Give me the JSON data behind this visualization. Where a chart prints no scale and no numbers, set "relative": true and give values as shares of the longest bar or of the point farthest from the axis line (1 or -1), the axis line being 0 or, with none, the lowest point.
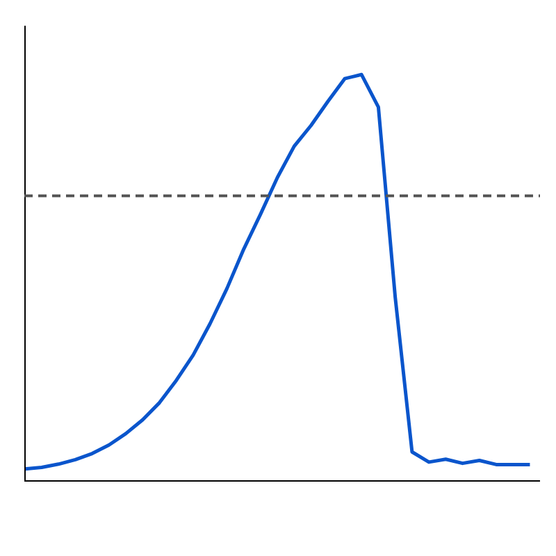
{
  "chart_data": {
    "type": "line",
    "relative": true,
    "categories": [
      null,
      null,
      null,
      null,
      null,
      null,
      null,
      null,
      null,
      null,
      null,
      null,
      null,
      null,
      null,
      null,
      null,
      null,
      null,
      null,
      null,
      null,
      null,
      null,
      null,
      null,
      null,
      null,
      null,
      null,
      null
    ],
    "series": [
      {
        "color": "#0a55cc",
        "values": [
          0.031,
          0.035,
          0.043,
          0.054,
          0.069,
          0.09,
          0.118,
          0.152,
          0.194,
          0.249,
          0.311,
          0.388,
          0.474,
          0.571,
          0.657,
          0.747,
          0.824,
          0.875,
          0.934,
          0.99,
          1.0,
          0.92,
          0.453,
          0.073,
          0.048,
          0.055,
          0.045,
          0.052,
          0.042,
          0.042,
          0.042
        ]
      }
    ],
    "ref_lines": [
      {
        "axis": "y",
        "value": 0.702,
        "color": "#555555",
        "line_style": "dashed"
      }
    ],
    "grid": false
  }
}
